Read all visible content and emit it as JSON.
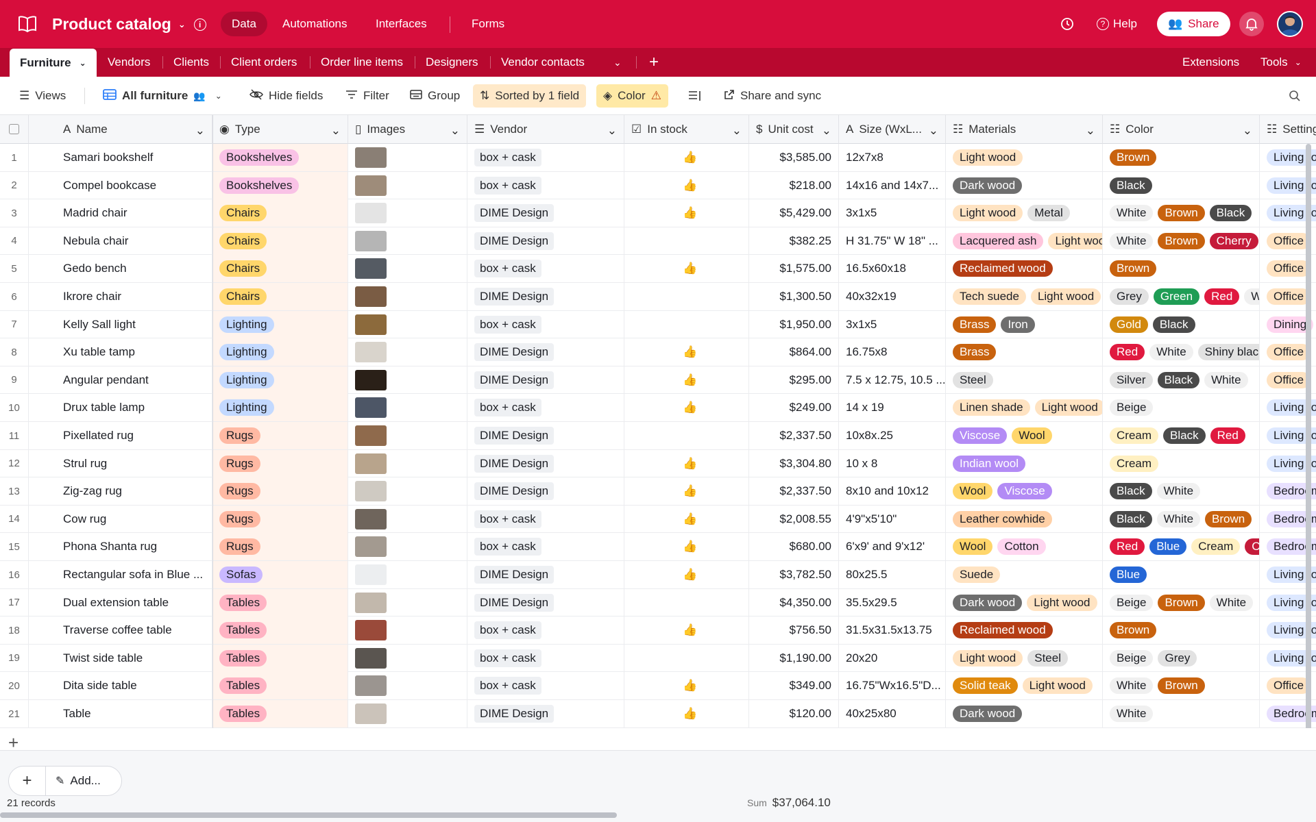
{
  "header": {
    "base_name": "Product catalog",
    "nav": [
      "Data",
      "Automations",
      "Interfaces",
      "Forms"
    ],
    "help": "Help",
    "share": "Share"
  },
  "tabs": {
    "items": [
      "Furniture",
      "Vendors",
      "Clients",
      "Client orders",
      "Order line items",
      "Designers",
      "Vendor contacts"
    ],
    "extensions": "Extensions",
    "tools": "Tools"
  },
  "toolbar": {
    "views": "Views",
    "view_name": "All furniture",
    "hide_fields": "Hide fields",
    "filter": "Filter",
    "group": "Group",
    "sorted": "Sorted by 1 field",
    "color": "Color",
    "share_sync": "Share and sync"
  },
  "columns": {
    "name": "Name",
    "type": "Type",
    "images": "Images",
    "vendor": "Vendor",
    "in_stock": "In stock",
    "unit_cost": "Unit cost",
    "size": "Size (WxL...",
    "materials": "Materials",
    "color": "Color",
    "settings": "Settings"
  },
  "type_colors": {
    "Bookshelves": "#f9c2e6",
    "Chairs": "#ffd66b",
    "Lighting": "#c3d9ff",
    "Rugs": "#ffb9a3",
    "Sofas": "#c9b8ff",
    "Tables": "#ffb3c3"
  },
  "tag_colors": {
    "Light wood": "#ffe3c2",
    "Dark wood": "#6e6e6e",
    "Metal": "#e2e2e2",
    "Lacquered ash": "#ffc6dd",
    "Reclaimed wood": "#b53d14",
    "Tech suede": "#ffe3c2",
    "Brass": "#c8620e",
    "Iron": "#6e6e6e",
    "Steel": "#e2e2e2",
    "Linen shade": "#ffe3c2",
    "Viscose": "#b38bf5",
    "Wool": "#ffd66b",
    "Indian wool": "#b38bf5",
    "Leather cowhide": "#ffd0a6",
    "Cotton": "#ffd6f0",
    "Suede": "#ffe3c2",
    "Solid teak": "#e08a0e",
    "Brown": "#c8620e",
    "Black": "#4a4a4a",
    "White": "#f0f0f0",
    "Cherry": "#c51b3a",
    "Grey": "#e2e2e2",
    "Green": "#1f9d55",
    "Red": "#e0193f",
    "Gold": "#d2890e",
    "Shiny black": "#e2e2e2",
    "Silver": "#e2e2e2",
    "Beige": "#f0f0f0",
    "Cream": "#fff0c2",
    "Blue": "#2466d6",
    "Living room": "#dde8ff",
    "Office": "#ffe3c2",
    "Dining": "#ffd6f0",
    "Bedroom": "#e8e0ff"
  },
  "rows": [
    {
      "id": "1",
      "name": "Samari bookshelf",
      "type": "Bookshelves",
      "img": "#8a7f75",
      "vendor": "box + cask",
      "stock": true,
      "cost": "$3,585.00",
      "size": "12x7x8",
      "materials": [
        "Light wood"
      ],
      "colors": [
        "Brown"
      ],
      "setting": "Living room"
    },
    {
      "id": "2",
      "name": "Compel bookcase",
      "type": "Bookshelves",
      "img": "#9e8c7a",
      "vendor": "box + cask",
      "stock": true,
      "cost": "$218.00",
      "size": "14x16 and 14x7...",
      "materials": [
        "Dark wood"
      ],
      "colors": [
        "Black"
      ],
      "setting": "Living room"
    },
    {
      "id": "3",
      "name": "Madrid chair",
      "type": "Chairs",
      "img": "#e4e4e4",
      "vendor": "DIME Design",
      "stock": true,
      "cost": "$5,429.00",
      "size": "3x1x5",
      "materials": [
        "Light wood",
        "Metal"
      ],
      "colors": [
        "White",
        "Brown",
        "Black"
      ],
      "setting": "Living room"
    },
    {
      "id": "4",
      "name": "Nebula chair",
      "type": "Chairs",
      "img": "#b5b5b5",
      "vendor": "DIME Design",
      "stock": false,
      "cost": "$382.25",
      "size": "H 31.75\" W 18\" ...",
      "materials": [
        "Lacquered ash",
        "Light wood"
      ],
      "colors": [
        "White",
        "Brown",
        "Cherry"
      ],
      "setting": "Office"
    },
    {
      "id": "5",
      "name": "Gedo bench",
      "type": "Chairs",
      "img": "#555b63",
      "vendor": "box + cask",
      "stock": true,
      "cost": "$1,575.00",
      "size": "16.5x60x18",
      "materials": [
        "Reclaimed wood"
      ],
      "colors": [
        "Brown"
      ],
      "setting": "Office"
    },
    {
      "id": "6",
      "name": "Ikrore chair",
      "type": "Chairs",
      "img": "#7a5c44",
      "vendor": "DIME Design",
      "stock": false,
      "cost": "$1,300.50",
      "size": "40x32x19",
      "materials": [
        "Tech suede",
        "Light wood"
      ],
      "colors": [
        "Grey",
        "Green",
        "Red",
        "White"
      ],
      "setting": "Office"
    },
    {
      "id": "7",
      "name": "Kelly Sall light",
      "type": "Lighting",
      "img": "#8c6a3c",
      "vendor": "box + cask",
      "stock": false,
      "cost": "$1,950.00",
      "size": "3x1x5",
      "materials": [
        "Brass",
        "Iron"
      ],
      "colors": [
        "Gold",
        "Black"
      ],
      "setting": "Dining"
    },
    {
      "id": "8",
      "name": "Xu table tamp",
      "type": "Lighting",
      "img": "#d9d4cc",
      "vendor": "DIME Design",
      "stock": true,
      "cost": "$864.00",
      "size": "16.75x8",
      "materials": [
        "Brass"
      ],
      "colors": [
        "Red",
        "White",
        "Shiny black"
      ],
      "setting": "Office"
    },
    {
      "id": "9",
      "name": "Angular pendant",
      "type": "Lighting",
      "img": "#2a2018",
      "vendor": "DIME Design",
      "stock": true,
      "cost": "$295.00",
      "size": "7.5 x 12.75, 10.5 ...",
      "materials": [
        "Steel"
      ],
      "colors": [
        "Silver",
        "Black",
        "White"
      ],
      "setting": "Office"
    },
    {
      "id": "10",
      "name": "Drux table lamp",
      "type": "Lighting",
      "img": "#4d5666",
      "vendor": "box + cask",
      "stock": true,
      "cost": "$249.00",
      "size": "14 x 19",
      "materials": [
        "Linen shade",
        "Light wood"
      ],
      "colors": [
        "Beige"
      ],
      "setting": "Living room"
    },
    {
      "id": "11",
      "name": "Pixellated rug",
      "type": "Rugs",
      "img": "#8f6a4c",
      "vendor": "DIME Design",
      "stock": false,
      "cost": "$2,337.50",
      "size": "10x8x.25",
      "materials": [
        "Viscose",
        "Wool"
      ],
      "colors": [
        "Cream",
        "Black",
        "Red"
      ],
      "setting": "Living room"
    },
    {
      "id": "12",
      "name": "Strul rug",
      "type": "Rugs",
      "img": "#b8a48c",
      "vendor": "DIME Design",
      "stock": true,
      "cost": "$3,304.80",
      "size": "10 x 8",
      "materials": [
        "Indian wool"
      ],
      "colors": [
        "Cream"
      ],
      "setting": "Living room"
    },
    {
      "id": "13",
      "name": "Zig-zag rug",
      "type": "Rugs",
      "img": "#cfcac2",
      "vendor": "DIME Design",
      "stock": true,
      "cost": "$2,337.50",
      "size": "8x10 and 10x12",
      "materials": [
        "Wool",
        "Viscose"
      ],
      "colors": [
        "Black",
        "White"
      ],
      "setting": "Bedroom"
    },
    {
      "id": "14",
      "name": "Cow rug",
      "type": "Rugs",
      "img": "#6f655c",
      "vendor": "box + cask",
      "stock": true,
      "cost": "$2,008.55",
      "size": "4'9\"x5'10\"",
      "materials": [
        "Leather cowhide"
      ],
      "colors": [
        "Black",
        "White",
        "Brown"
      ],
      "setting": "Bedroom"
    },
    {
      "id": "15",
      "name": "Phona Shanta rug",
      "type": "Rugs",
      "img": "#a39a90",
      "vendor": "box + cask",
      "stock": true,
      "cost": "$680.00",
      "size": "6'x9' and 9'x12'",
      "materials": [
        "Wool",
        "Cotton"
      ],
      "colors": [
        "Red",
        "Blue",
        "Cream",
        "Cherry"
      ],
      "setting": "Bedroom"
    },
    {
      "id": "16",
      "name": "Rectangular sofa in Blue ...",
      "type": "Sofas",
      "img": "#eceef0",
      "vendor": "DIME Design",
      "stock": true,
      "cost": "$3,782.50",
      "size": "80x25.5",
      "materials": [
        "Suede"
      ],
      "colors": [
        "Blue"
      ],
      "setting": "Living room"
    },
    {
      "id": "17",
      "name": "Dual extension table",
      "type": "Tables",
      "img": "#c2b8ac",
      "vendor": "DIME Design",
      "stock": false,
      "cost": "$4,350.00",
      "size": "35.5x29.5",
      "materials": [
        "Dark wood",
        "Light wood"
      ],
      "colors": [
        "Beige",
        "Brown",
        "White"
      ],
      "setting": "Living room"
    },
    {
      "id": "18",
      "name": "Traverse coffee table",
      "type": "Tables",
      "img": "#9a4a3a",
      "vendor": "box + cask",
      "stock": true,
      "cost": "$756.50",
      "size": "31.5x31.5x13.75",
      "materials": [
        "Reclaimed wood"
      ],
      "colors": [
        "Brown"
      ],
      "setting": "Living room"
    },
    {
      "id": "19",
      "name": "Twist side table",
      "type": "Tables",
      "img": "#5a5550",
      "vendor": "box + cask",
      "stock": false,
      "cost": "$1,190.00",
      "size": "20x20",
      "materials": [
        "Light wood",
        "Steel"
      ],
      "colors": [
        "Beige",
        "Grey"
      ],
      "setting": "Living room"
    },
    {
      "id": "20",
      "name": "Dita side table",
      "type": "Tables",
      "img": "#9b9590",
      "vendor": "box + cask",
      "stock": true,
      "cost": "$349.00",
      "size": "16.75\"Wx16.5\"D...",
      "materials": [
        "Solid teak",
        "Light wood"
      ],
      "colors": [
        "White",
        "Brown"
      ],
      "setting": "Office"
    },
    {
      "id": "21",
      "name": "Table",
      "type": "Tables",
      "img": "#cbc3ba",
      "vendor": "DIME Design",
      "stock": true,
      "cost": "$120.00",
      "size": "40x25x80",
      "materials": [
        "Dark wood"
      ],
      "colors": [
        "White"
      ],
      "setting": "Bedroom"
    }
  ],
  "footer": {
    "add_label": "Add...",
    "records": "21 records",
    "sum_label": "Sum",
    "sum_value": "$37,064.10"
  }
}
